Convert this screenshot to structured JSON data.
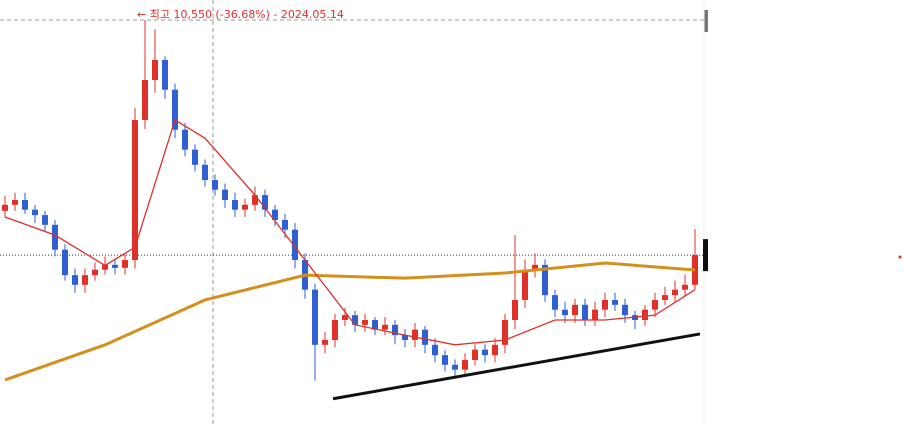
{
  "chart_data": {
    "type": "candlestick",
    "annotation": "← 최고 10,550 (-36.68%) - 2024.05.14",
    "ylim": [
      3900,
      10880
    ],
    "up_color": "#e0302a",
    "down_color": "#2f5fd0",
    "open": [
      7400,
      7500,
      7580,
      7420,
      7330,
      7170,
      6760,
      6340,
      6180,
      6340,
      6430,
      6510,
      6460,
      6590,
      8900,
      9560,
      9890,
      9400,
      8740,
      8410,
      8160,
      7910,
      7750,
      7580,
      7420,
      7500,
      7660,
      7420,
      7250,
      7090,
      6590,
      6100,
      5190,
      5270,
      5600,
      5680,
      5520,
      5600,
      5440,
      5520,
      5350,
      5270,
      5440,
      5190,
      5020,
      4860,
      4780,
      4940,
      5110,
      5020,
      5190,
      5600,
      5930,
      6430,
      6510,
      6010,
      5770,
      5680,
      5850,
      5600,
      5770,
      5930,
      5850,
      5680,
      5600,
      5770,
      5930,
      6010,
      6100,
      6180
    ],
    "high": [
      7650,
      7700,
      7700,
      7500,
      7400,
      7250,
      6850,
      6450,
      6450,
      6550,
      6650,
      6600,
      6700,
      9100,
      10550,
      10400,
      9950,
      9500,
      8850,
      8500,
      8250,
      8000,
      7850,
      7700,
      7600,
      7800,
      7750,
      7500,
      7350,
      7200,
      6700,
      6200,
      5400,
      5700,
      5800,
      5750,
      5700,
      5650,
      5650,
      5600,
      5450,
      5550,
      5500,
      5300,
      5100,
      4950,
      5050,
      5200,
      5200,
      5300,
      5700,
      7000,
      6600,
      6700,
      6600,
      6100,
      5900,
      5950,
      5950,
      5900,
      6050,
      6050,
      5950,
      5750,
      5850,
      6050,
      6150,
      6250,
      6350,
      7100
    ],
    "low": [
      7300,
      7400,
      7350,
      7200,
      7050,
      6650,
      6250,
      6050,
      6050,
      6250,
      6350,
      6350,
      6350,
      6450,
      8750,
      9350,
      9250,
      8600,
      8300,
      8050,
      7800,
      7650,
      7450,
      7300,
      7300,
      7400,
      7300,
      7150,
      6950,
      6450,
      5950,
      4600,
      5050,
      5150,
      5500,
      5400,
      5400,
      5350,
      5350,
      5200,
      5150,
      5150,
      5050,
      4900,
      4750,
      4650,
      4700,
      4850,
      4900,
      4900,
      5050,
      5450,
      5800,
      6300,
      5900,
      5650,
      5550,
      5550,
      5500,
      5500,
      5650,
      5750,
      5550,
      5450,
      5500,
      5650,
      5850,
      5900,
      6000,
      6100
    ],
    "close": [
      7500,
      7580,
      7420,
      7330,
      7170,
      6760,
      6340,
      6180,
      6340,
      6430,
      6510,
      6460,
      6590,
      8900,
      9560,
      9890,
      9400,
      8740,
      8410,
      8160,
      7910,
      7750,
      7580,
      7420,
      7500,
      7660,
      7420,
      7250,
      7090,
      6590,
      6100,
      5190,
      5270,
      5600,
      5680,
      5520,
      5600,
      5440,
      5520,
      5350,
      5270,
      5440,
      5190,
      5020,
      4860,
      4780,
      4940,
      5110,
      5020,
      5190,
      5600,
      5930,
      6430,
      6510,
      6010,
      5770,
      5680,
      5850,
      5600,
      5770,
      5930,
      5850,
      5680,
      5600,
      5770,
      5930,
      6010,
      6100,
      6180,
      6670
    ],
    "lines": [
      {
        "color": "#d4901c",
        "x": [
          0,
          10,
          20,
          30,
          40,
          50,
          60,
          69
        ],
        "values": [
          4610,
          5190,
          5930,
          6340,
          6290,
          6375,
          6540,
          6425
        ]
      },
      {
        "color": "#e0302a",
        "x": [
          0,
          5,
          10,
          13,
          17,
          20,
          25,
          30,
          35,
          40,
          45,
          50,
          55,
          60,
          65,
          69
        ],
        "values": [
          7300,
          7000,
          6500,
          6800,
          8900,
          8600,
          7660,
          6590,
          5520,
          5350,
          5190,
          5270,
          5600,
          5600,
          5680,
          6100
        ]
      },
      {
        "color": "#111111",
        "x": [
          32.8,
          69.5
        ],
        "values": [
          4300,
          5370
        ]
      }
    ]
  }
}
